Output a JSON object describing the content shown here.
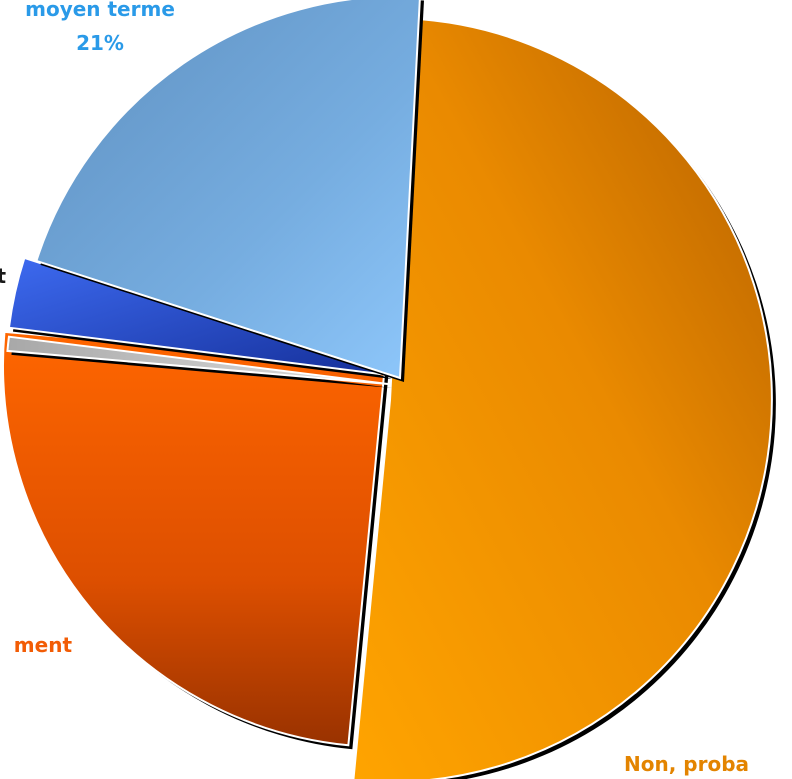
{
  "chart_data": {
    "type": "pie",
    "title": "",
    "slices": [
      {
        "label": "Non, proba",
        "percent_label": "",
        "value": 51,
        "color": "#e38400"
      },
      {
        "label": "ment",
        "percent_label": "",
        "value": 25,
        "color": "#e65300"
      },
      {
        "label": "",
        "percent_label": "",
        "value": 0.6,
        "color": "#c8c8c8"
      },
      {
        "label": "t",
        "percent_label": "",
        "value": 3,
        "color": "#1f47cc"
      },
      {
        "label": "moyen terme",
        "percent_label": "21%",
        "value": 21,
        "color": "#74aadb"
      }
    ],
    "label_colors": {
      "Non, proba": "#e38400",
      "ment": "#f25c05",
      "t": "#1a1a1a",
      "moyen terme": "#2a9ae8"
    },
    "exploded": true,
    "legend": "none"
  }
}
